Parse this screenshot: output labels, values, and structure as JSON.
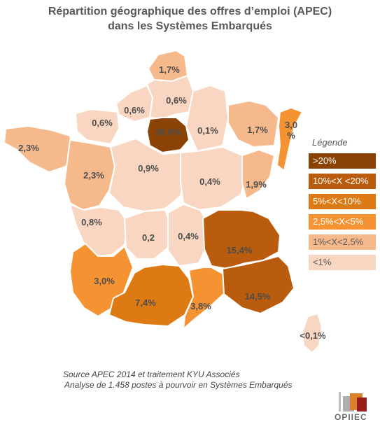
{
  "title": {
    "line1": "Répartition géographique des offres d’emploi (APEC)",
    "line2": "dans les Systèmes Embarqués"
  },
  "colors": {
    "gt20": "#8b4305",
    "10to20": "#b95c0d",
    "5to10": "#de7a14",
    "2_5to5": "#f59333",
    "1to2_5": "#f6b98b",
    "lt1": "#f9d6c1"
  },
  "regions": [
    {
      "key": "nord_pas_de_calais",
      "label": "1,7%",
      "value": 1.7,
      "class": "1to2_5"
    },
    {
      "key": "haute_normandie",
      "label": "0,6%",
      "value": 0.6,
      "class": "lt1"
    },
    {
      "key": "picardie",
      "label": "0,6%",
      "value": 0.6,
      "class": "lt1"
    },
    {
      "key": "basse_normandie",
      "label": "0,6%",
      "value": 0.6,
      "class": "lt1"
    },
    {
      "key": "ile_de_france",
      "label": "38,8%",
      "value": 38.8,
      "class": "gt20"
    },
    {
      "key": "champagne_ardenne",
      "label": "0,1%",
      "value": 0.1,
      "class": "lt1"
    },
    {
      "key": "lorraine",
      "label": "1,7%",
      "value": 1.7,
      "class": "1to2_5"
    },
    {
      "key": "alsace",
      "label": "3,0\n%",
      "value": 3.0,
      "class": "2_5to5"
    },
    {
      "key": "bretagne",
      "label": "2,3%",
      "value": 2.3,
      "class": "1to2_5"
    },
    {
      "key": "pays_de_la_loire",
      "label": "2,3%",
      "value": 2.3,
      "class": "1to2_5"
    },
    {
      "key": "centre",
      "label": "0,9%",
      "value": 0.9,
      "class": "lt1"
    },
    {
      "key": "bourgogne",
      "label": "0,4%",
      "value": 0.4,
      "class": "lt1"
    },
    {
      "key": "franche_comte",
      "label": "1,9%",
      "value": 1.9,
      "class": "1to2_5"
    },
    {
      "key": "poitou_charentes",
      "label": "0,8%",
      "value": 0.8,
      "class": "lt1"
    },
    {
      "key": "limousin",
      "label": "0,2",
      "value": 0.2,
      "class": "lt1"
    },
    {
      "key": "auvergne",
      "label": "0,4%",
      "value": 0.4,
      "class": "lt1"
    },
    {
      "key": "rhone_alpes",
      "label": "15,4%",
      "value": 15.4,
      "class": "10to20"
    },
    {
      "key": "aquitaine",
      "label": "3,0%",
      "value": 3.0,
      "class": "2_5to5"
    },
    {
      "key": "midi_pyrenees",
      "label": "7,4%",
      "value": 7.4,
      "class": "5to10"
    },
    {
      "key": "languedoc_roussillon",
      "label": "3,8%",
      "value": 3.8,
      "class": "2_5to5"
    },
    {
      "key": "paca",
      "label": "14,5%",
      "value": 14.5,
      "class": "10to20"
    },
    {
      "key": "corse",
      "label": "<0,1%",
      "value": 0.05,
      "class": "lt1"
    }
  ],
  "legend": {
    "title": "Légende",
    "items": [
      {
        "label": ">20%",
        "class": "gt20",
        "text_color": "#ffffff"
      },
      {
        "label": "10%<X <20%",
        "class": "10to20",
        "text_color": "#ffffff"
      },
      {
        "label": "5%<X<10%",
        "class": "5to10",
        "text_color": "#ffffff"
      },
      {
        "label": "2,5%<X<5%",
        "class": "2_5to5",
        "text_color": "#ffffff"
      },
      {
        "label": "1%<X<2,5%",
        "class": "1to2_5",
        "text_color": "#595959"
      },
      {
        "label": "<1%",
        "class": "lt1",
        "text_color": "#595959"
      }
    ]
  },
  "source": {
    "line1": "Source APEC 2014 et traitement KYU Associés",
    "line2": "Analyse de 1.458 postes à pourvoir en Systèmes Embarqués"
  },
  "logo": {
    "text": "OPIIEC"
  }
}
